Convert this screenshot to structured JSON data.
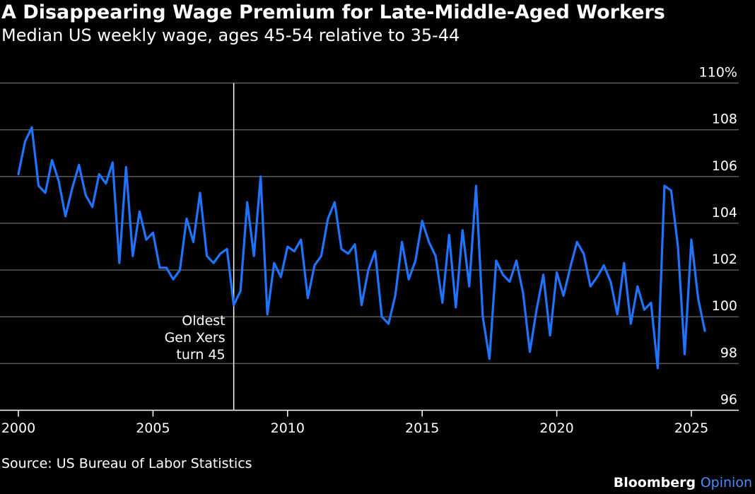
{
  "title": "A Disappearing Wage Premium for Late-Middle-Aged Workers",
  "subtitle": "Median US weekly wage, ages 45-54 relative to 35-44",
  "source": "Source: US Bureau of Labor Statistics",
  "brand": {
    "name": "Bloomberg",
    "product": "Opinion"
  },
  "colors": {
    "line": "#1f74ff",
    "grid": "#5a5a5a",
    "background": "#000000",
    "text": "#ffffff",
    "brand_accent": "#4a8cff"
  },
  "chart_data": {
    "type": "line",
    "title": "A Disappearing Wage Premium for Late-Middle-Aged Workers",
    "subtitle": "Median US weekly wage, ages 45-54 relative to 35-44",
    "xlim": [
      2000,
      2025.75
    ],
    "ylim": [
      96,
      110
    ],
    "y_axis_position": "right",
    "grid": "horizontal",
    "x_ticks": [
      2000,
      2005,
      2010,
      2015,
      2020,
      2025
    ],
    "x_tick_labels": [
      "2000",
      "2005",
      "2010",
      "2015",
      "2020",
      "2025"
    ],
    "y_ticks": [
      96,
      98,
      100,
      102,
      104,
      106,
      108,
      110
    ],
    "y_tick_labels": [
      "96",
      "98",
      "100",
      "102",
      "104",
      "106",
      "108",
      "110%"
    ],
    "annotation": {
      "x": 2008.0,
      "lines": [
        "Oldest",
        "Gen Xers",
        "turn 45"
      ]
    },
    "series": [
      {
        "x": [
          2000.0,
          2000.25,
          2000.5,
          2000.75,
          2001.0,
          2001.25,
          2001.5,
          2001.75,
          2002.0,
          2002.25,
          2002.5,
          2002.75,
          2003.0,
          2003.25,
          2003.5,
          2003.75,
          2004.0,
          2004.25,
          2004.5,
          2004.75,
          2005.0,
          2005.25,
          2005.5,
          2005.75,
          2006.0,
          2006.25,
          2006.5,
          2006.75,
          2007.0,
          2007.25,
          2007.5,
          2007.75,
          2008.0,
          2008.25,
          2008.5,
          2008.75,
          2009.0,
          2009.25,
          2009.5,
          2009.75,
          2010.0,
          2010.25,
          2010.5,
          2010.75,
          2011.0,
          2011.25,
          2011.5,
          2011.75,
          2012.0,
          2012.25,
          2012.5,
          2012.75,
          2013.0,
          2013.25,
          2013.5,
          2013.75,
          2014.0,
          2014.25,
          2014.5,
          2014.75,
          2015.0,
          2015.25,
          2015.5,
          2015.75,
          2016.0,
          2016.25,
          2016.5,
          2016.75,
          2017.0,
          2017.25,
          2017.5,
          2017.75,
          2018.0,
          2018.25,
          2018.5,
          2018.75,
          2019.0,
          2019.25,
          2019.5,
          2019.75,
          2020.0,
          2020.25,
          2020.5,
          2020.75,
          2021.0,
          2021.25,
          2021.5,
          2021.75,
          2022.0,
          2022.25,
          2022.5,
          2022.75,
          2023.0,
          2023.25,
          2023.5,
          2023.75,
          2024.0,
          2024.25,
          2024.5,
          2024.75,
          2025.0,
          2025.25,
          2025.5
        ],
        "values": [
          106.1,
          107.5,
          108.1,
          105.6,
          105.3,
          106.7,
          105.8,
          104.3,
          105.5,
          106.5,
          105.2,
          104.7,
          106.1,
          105.7,
          106.6,
          102.3,
          106.4,
          102.6,
          104.5,
          103.3,
          103.6,
          102.1,
          102.1,
          101.6,
          102.0,
          104.2,
          103.2,
          105.3,
          102.6,
          102.3,
          102.7,
          102.9,
          100.5,
          101.1,
          104.9,
          102.6,
          106.0,
          100.1,
          102.3,
          101.7,
          103.0,
          102.8,
          103.3,
          100.8,
          102.2,
          102.6,
          104.2,
          104.9,
          102.9,
          102.7,
          103.1,
          100.5,
          102.0,
          102.8,
          100.0,
          99.7,
          100.9,
          103.2,
          101.6,
          102.4,
          104.1,
          103.2,
          102.6,
          100.6,
          103.5,
          100.4,
          103.7,
          101.3,
          105.6,
          100.0,
          98.2,
          102.4,
          101.8,
          101.5,
          102.4,
          101.0,
          98.5,
          100.3,
          101.8,
          99.2,
          101.9,
          100.9,
          102.1,
          103.2,
          102.7,
          101.3,
          101.7,
          102.2,
          101.5,
          100.1,
          102.3,
          99.7,
          101.3,
          100.3,
          100.6,
          97.8,
          105.6,
          105.4,
          103.0,
          98.4,
          103.3,
          100.8,
          99.4
        ]
      }
    ]
  }
}
